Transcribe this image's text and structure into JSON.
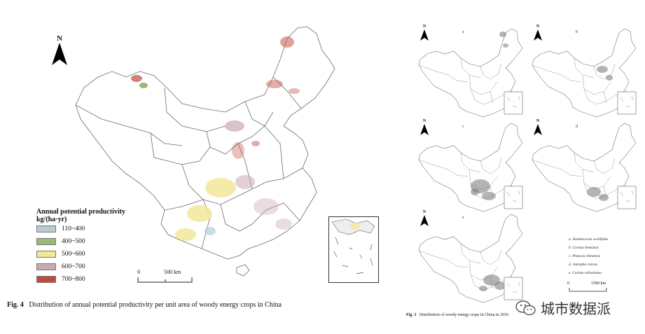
{
  "main_map": {
    "north_label": "N",
    "legend": {
      "title_line1": "Annual potential productivity",
      "title_line2": "kg/(ha·yr)",
      "items": [
        {
          "label": "110~400",
          "color": "#b8cdd3"
        },
        {
          "label": "400~500",
          "color": "#9fb87a"
        },
        {
          "label": "500~600",
          "color": "#f2e79a"
        },
        {
          "label": "600~700",
          "color": "#c8aab0"
        },
        {
          "label": "700~800",
          "color": "#c24a3e"
        }
      ]
    },
    "scale": {
      "zero": "0",
      "distance": "500 km"
    },
    "caption": {
      "label": "Fig. 4",
      "text": "Distribution of annual potential productivity per unit area of woody energy crops in China"
    }
  },
  "small_maps": {
    "north_label": "N",
    "letters": [
      "a",
      "b",
      "c",
      "d",
      "e"
    ],
    "species_key": [
      "a. Xanthoceras sorbifolia",
      "b. Cornus hemsleyi",
      "c. Pistacia chinensis",
      "d. Jatropha curcas",
      "e. Cornus wilsoniana"
    ],
    "scale": {
      "zero": "0",
      "distance": "1500 km"
    },
    "caption": {
      "label": "Fig. 3",
      "text": "Distribution of woody energy crops in China in 2010"
    }
  },
  "watermark": {
    "text": "城市数据派"
  }
}
